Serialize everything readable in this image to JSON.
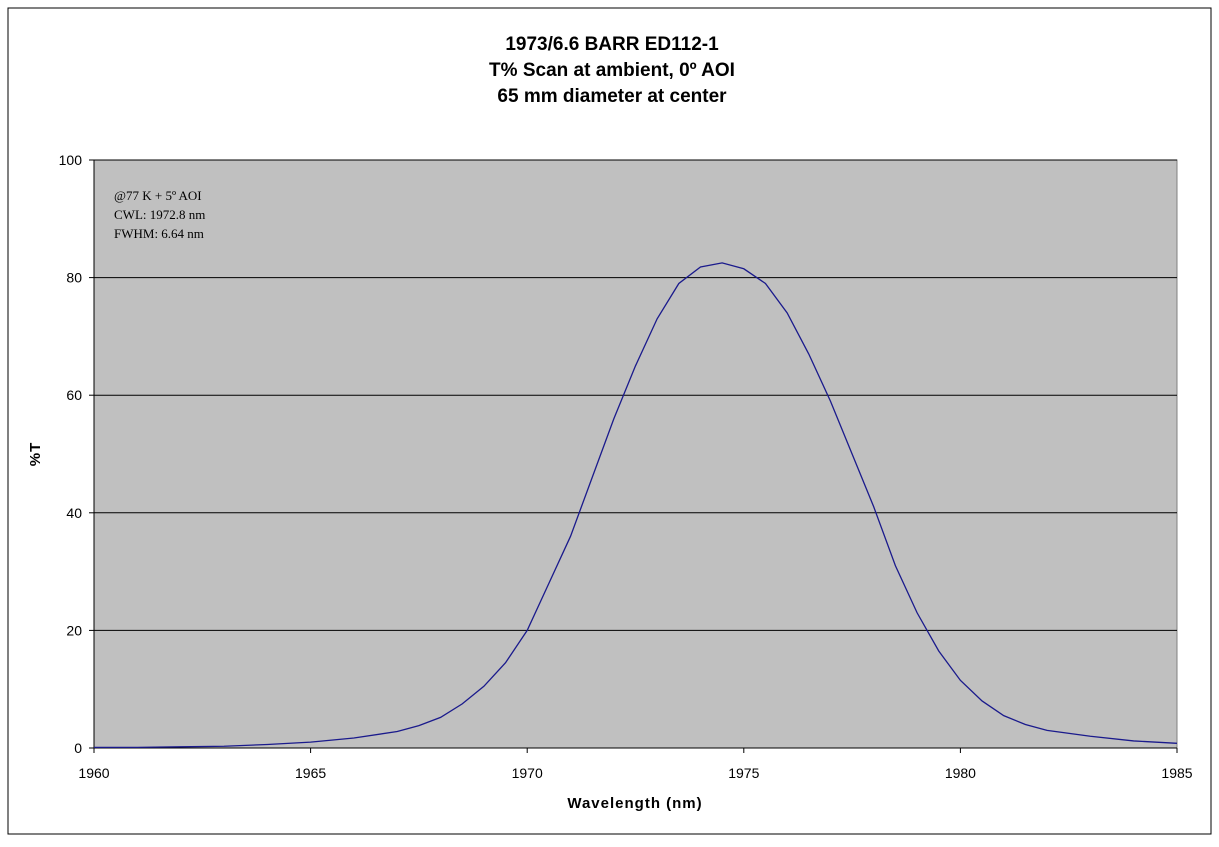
{
  "chart_data": {
    "type": "line",
    "title": [
      "1973/6.6 BARR ED112-1",
      "T%  Scan at ambient, 0º AOI",
      "65 mm diameter at center"
    ],
    "annotation": [
      "@77 K   + 5º AOI",
      "CWL: 1972.8 nm",
      "FWHM: 6.64 nm"
    ],
    "x_label": "Wavelength (nm)",
    "y_label": "%T",
    "xlim": [
      1960,
      1985
    ],
    "xticks": [
      1960,
      1965,
      1970,
      1975,
      1980,
      1985
    ],
    "ylim": [
      0,
      100
    ],
    "yticks": [
      0,
      20,
      40,
      60,
      80,
      100
    ],
    "grid": true,
    "plot_background": "#c0c0c0",
    "x": [
      1960,
      1961,
      1962,
      1963,
      1964,
      1965,
      1966,
      1967,
      1967.5,
      1968,
      1968.5,
      1969,
      1969.5,
      1970,
      1970.5,
      1971,
      1971.5,
      1972,
      1972.5,
      1973,
      1973.5,
      1974,
      1974.5,
      1975,
      1975.5,
      1976,
      1976.5,
      1977,
      1977.5,
      1978,
      1978.5,
      1979,
      1979.5,
      1980,
      1980.5,
      1981,
      1981.5,
      1982,
      1983,
      1984,
      1985
    ],
    "series": [
      {
        "color": "#1a1a8c",
        "values": [
          0.1,
          0.1,
          0.2,
          0.3,
          0.6,
          1.0,
          1.7,
          2.8,
          3.8,
          5.2,
          7.5,
          10.5,
          14.5,
          20,
          28,
          36,
          46,
          56,
          65,
          73,
          79,
          81.8,
          82.5,
          81.5,
          79,
          74,
          67,
          59,
          50,
          41,
          31,
          23,
          16.5,
          11.5,
          8,
          5.5,
          4.0,
          3.0,
          2.0,
          1.2,
          0.8
        ]
      }
    ]
  }
}
